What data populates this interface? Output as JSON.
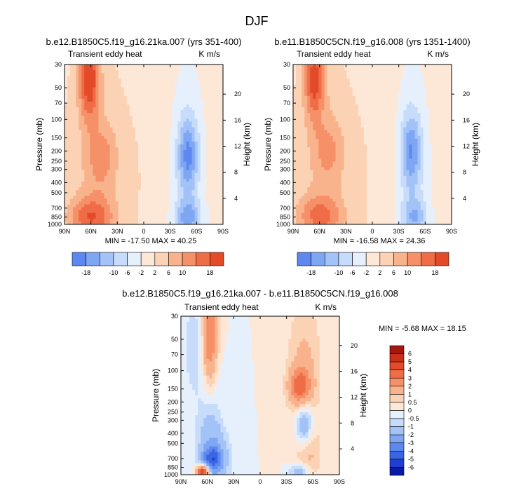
{
  "figure": {
    "title": "DJF"
  },
  "palette": {
    "neg": [
      "#07047f",
      "#0a1aa8",
      "#1e3fd0",
      "#3a66e6",
      "#5c88ef",
      "#7fa6f3",
      "#a3c2f7",
      "#c6dcfa",
      "#e6f0fd"
    ],
    "pos": [
      "#fde8d8",
      "#fcd2b4",
      "#f9b38c",
      "#f59068",
      "#ef6c46",
      "#e34a2a",
      "#c8301a",
      "#a2180e",
      "#7a0604"
    ]
  },
  "chart_data": [
    {
      "id": "panel-left",
      "type": "heatmap",
      "title": "b.e12.B1850C5.f19_g16.21ka.007 (yrs 351-400)",
      "left_label": "Transient eddy heat",
      "right_label": "K m/s",
      "ylabel": "Pressure (mb)",
      "ylabel_right": "Height (km)",
      "x_ticks": [
        "90N",
        "60N",
        "30N",
        "0",
        "30S",
        "60S",
        "90S"
      ],
      "y_ticks": [
        "30",
        "50",
        "70",
        "100",
        "150",
        "200",
        "250",
        "300",
        "400",
        "500",
        "700",
        "850",
        "1000"
      ],
      "height_ticks": [
        "20",
        "16",
        "12",
        "8",
        "4"
      ],
      "xlim": [
        90,
        -90
      ],
      "ylim_mb": [
        1000,
        30
      ],
      "min_max": "MIN = -17.50  MAX = 40.25",
      "features": [
        {
          "name": "nh-strat-max",
          "lat": 62,
          "p": 40,
          "dlat": 8,
          "dlogp": 0.28,
          "amp": 20
        },
        {
          "name": "nh-upper-max",
          "lat": 48,
          "p": 230,
          "dlat": 12,
          "dlogp": 0.22,
          "amp": 8
        },
        {
          "name": "nh-surface-max",
          "lat": 60,
          "p": 850,
          "dlat": 18,
          "dlogp": 0.14,
          "amp": 14
        },
        {
          "name": "nh-broad",
          "lat": 55,
          "p": 300,
          "dlat": 28,
          "dlogp": 0.9,
          "amp": 5
        },
        {
          "name": "sh-upper-min",
          "lat": -50,
          "p": 220,
          "dlat": 8,
          "dlogp": 0.25,
          "amp": -15
        },
        {
          "name": "sh-surface-min",
          "lat": -50,
          "p": 870,
          "dlat": 10,
          "dlogp": 0.12,
          "amp": -12
        },
        {
          "name": "sh-broad",
          "lat": -50,
          "p": 400,
          "dlat": 14,
          "dlogp": 0.9,
          "amp": -5
        },
        {
          "name": "tropics",
          "lat": 5,
          "p": 400,
          "dlat": 15,
          "dlogp": 0.6,
          "amp": 1
        }
      ]
    },
    {
      "id": "panel-right",
      "type": "heatmap",
      "title": "b.e11.B1850C5CN.f19_g16.008 (yrs 1351-1400)",
      "left_label": "Transient eddy heat",
      "right_label": "K m/s",
      "ylabel": "Pressure (mb)",
      "ylabel_right": "Height (km)",
      "x_ticks": [
        "90N",
        "60N",
        "30N",
        "0",
        "30S",
        "60S",
        "90S"
      ],
      "y_ticks": [
        "30",
        "50",
        "70",
        "100",
        "150",
        "200",
        "250",
        "300",
        "400",
        "500",
        "700",
        "850",
        "1000"
      ],
      "height_ticks": [
        "20",
        "16",
        "12",
        "8",
        "4"
      ],
      "xlim": [
        90,
        -90
      ],
      "ylim_mb": [
        1000,
        30
      ],
      "min_max": "MIN = -16.58  MAX = 24.36",
      "features": [
        {
          "name": "nh-strat-max",
          "lat": 66,
          "p": 40,
          "dlat": 8,
          "dlogp": 0.28,
          "amp": 18
        },
        {
          "name": "nh-upper-max",
          "lat": 50,
          "p": 200,
          "dlat": 12,
          "dlogp": 0.22,
          "amp": 7
        },
        {
          "name": "nh-surface-max",
          "lat": 60,
          "p": 830,
          "dlat": 18,
          "dlogp": 0.14,
          "amp": 12
        },
        {
          "name": "nh-broad",
          "lat": 55,
          "p": 300,
          "dlat": 28,
          "dlogp": 0.9,
          "amp": 5
        },
        {
          "name": "sh-upper-min",
          "lat": -44,
          "p": 200,
          "dlat": 8,
          "dlogp": 0.25,
          "amp": -14
        },
        {
          "name": "sh-surface-min",
          "lat": -48,
          "p": 850,
          "dlat": 10,
          "dlogp": 0.12,
          "amp": -10
        },
        {
          "name": "sh-broad",
          "lat": -46,
          "p": 400,
          "dlat": 14,
          "dlogp": 0.9,
          "amp": -5
        },
        {
          "name": "tropics",
          "lat": 5,
          "p": 400,
          "dlat": 15,
          "dlogp": 0.6,
          "amp": 1
        }
      ]
    },
    {
      "id": "panel-diff",
      "type": "heatmap",
      "title": "b.e12.B1850C5.f19_g16.21ka.007 - b.e11.B1850C5CN.f19_g16.008",
      "left_label": "Transient eddy heat",
      "right_label": "K m/s",
      "ylabel": "Pressure (mb)",
      "ylabel_right": "Height (km)",
      "x_ticks": [
        "90N",
        "60N",
        "30N",
        "0",
        "30S",
        "60S",
        "90S"
      ],
      "y_ticks": [
        "30",
        "50",
        "70",
        "100",
        "150",
        "200",
        "250",
        "300",
        "400",
        "500",
        "700",
        "850",
        "1000"
      ],
      "height_ticks": [
        "20",
        "16",
        "12",
        "8",
        "4"
      ],
      "xlim": [
        90,
        -90
      ],
      "ylim_mb": [
        1000,
        30
      ],
      "min_max": "MIN = -5.68  MAX = 18.15",
      "features": [
        {
          "name": "nh-strat-max",
          "lat": 57,
          "p": 45,
          "dlat": 6,
          "dlogp": 0.35,
          "amp": 3
        },
        {
          "name": "nh-polar-min",
          "lat": 75,
          "p": 60,
          "dlat": 8,
          "dlogp": 0.3,
          "amp": -1
        },
        {
          "name": "nh-mid-min",
          "lat": 52,
          "p": 500,
          "dlat": 12,
          "dlogp": 0.35,
          "amp": -2.5
        },
        {
          "name": "nh-low-min",
          "lat": 55,
          "p": 700,
          "dlat": 8,
          "dlogp": 0.08,
          "amp": -3
        },
        {
          "name": "nh-surface-max",
          "lat": 65,
          "p": 950,
          "dlat": 5,
          "dlogp": 0.05,
          "amp": 6
        },
        {
          "name": "nh-upper-max",
          "lat": 45,
          "p": 300,
          "dlat": 10,
          "dlogp": 0.2,
          "amp": 1
        },
        {
          "name": "sh-upper-max",
          "lat": -45,
          "p": 140,
          "dlat": 8,
          "dlogp": 0.12,
          "amp": 3
        },
        {
          "name": "sh-broad-max",
          "lat": -50,
          "p": 100,
          "dlat": 14,
          "dlogp": 0.5,
          "amp": 1.2
        },
        {
          "name": "sh-mid-min",
          "lat": -50,
          "p": 330,
          "dlat": 7,
          "dlogp": 0.15,
          "amp": -2.5
        },
        {
          "name": "sh-surface-min",
          "lat": -45,
          "p": 950,
          "dlat": 8,
          "dlogp": 0.06,
          "amp": -2
        },
        {
          "name": "sh-low-max",
          "lat": -55,
          "p": 650,
          "dlat": 10,
          "dlogp": 0.2,
          "amp": 1
        }
      ]
    }
  ],
  "colorbars": [
    {
      "id": "colorbar-left",
      "orientation": "horizontal",
      "levels": [
        -18,
        -14,
        -10,
        -6,
        -2,
        2,
        6,
        10,
        14,
        18
      ],
      "labels": [
        "-18",
        "-10",
        "-6",
        "-2",
        "2",
        "6",
        "10",
        "18"
      ]
    },
    {
      "id": "colorbar-right",
      "orientation": "horizontal",
      "levels": [
        -18,
        -14,
        -10,
        -6,
        -2,
        2,
        6,
        10,
        14,
        18
      ],
      "labels": [
        "-18",
        "-10",
        "-6",
        "-2",
        "2",
        "6",
        "10",
        "18"
      ]
    },
    {
      "id": "colorbar-diff",
      "orientation": "vertical",
      "levels": [
        -6,
        -5,
        -4,
        -3,
        -2,
        -1,
        -0.5,
        0,
        0.5,
        1,
        2,
        3,
        4,
        5,
        6
      ],
      "labels": [
        "6",
        "5",
        "4",
        "3",
        "2",
        "1",
        "0.5",
        "0",
        "-0.5",
        "-1",
        "-2",
        "-3",
        "-4",
        "-5",
        "-6"
      ]
    }
  ]
}
